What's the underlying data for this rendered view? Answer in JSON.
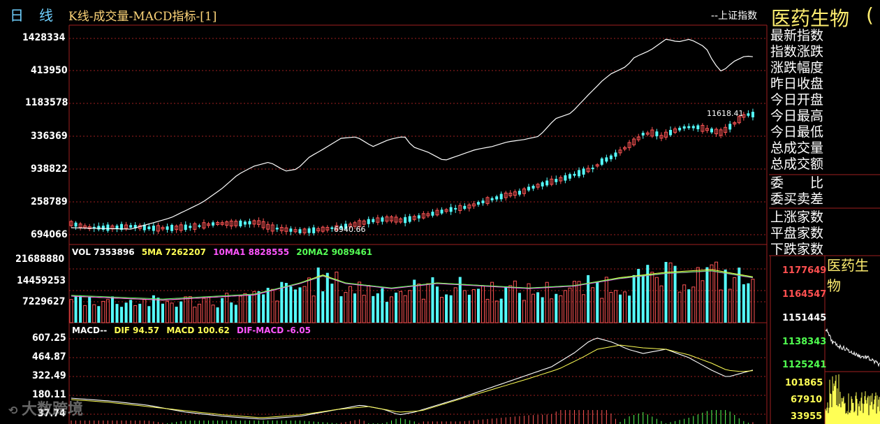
{
  "header": {
    "period_label": "日线",
    "chart_title": "K线-成交量-MACD指标-[1]",
    "index_legend": "--上证指数",
    "stock_name": "医药生物",
    "stock_code_fragment": "("
  },
  "price_panel": {
    "y_labels": [
      "1428334",
      "413950",
      "1183578",
      "336369",
      "938822",
      "258789",
      "694066"
    ],
    "high_annotation": "11618.41",
    "low_annotation": "6940.66"
  },
  "volume_panel": {
    "legend": {
      "vol": "VOL 7353896",
      "ma5": "5MA 7262207",
      "ma10": "10MA1 8828555",
      "ma20": "20MA2 9089461"
    },
    "y_labels": [
      "21688880",
      "14459253",
      "7229627"
    ]
  },
  "macd_panel": {
    "legend": {
      "name": "MACD--",
      "dif": "DIF 94.57",
      "macd": "MACD 100.62",
      "diff": "DIF-MACD -6.05"
    },
    "y_labels": [
      "607.25",
      "464.87",
      "322.49",
      "180.11",
      "37.74"
    ]
  },
  "info_panel": {
    "items": [
      "最新指数",
      "指数涨跌",
      "涨跌幅度",
      "昨日收盘",
      "今日开盘",
      "今日最高",
      "今日最低",
      "总成交量",
      "总成交额",
      "委　　比",
      "委买卖差",
      "上涨家数",
      "平盘家数",
      "下跌家数"
    ]
  },
  "mini_chart": {
    "name": "医药生物",
    "price_labels": [
      "1177649",
      "1164547",
      "1151445",
      "1138343",
      "1125241"
    ],
    "price_label_colors": [
      "#ff5050",
      "#ff5050",
      "#ffffff",
      "#50ff50",
      "#50ff50"
    ],
    "volume_labels": [
      "101865",
      "67910",
      "33955"
    ]
  },
  "watermark": {
    "text": "大数跨境"
  },
  "colors": {
    "up": "#ff5555",
    "down": "#55ffff",
    "index_line": "#ffffff",
    "ma5": "#ffff55",
    "ma10": "#ff55ff",
    "ma20": "#55ff55",
    "grid": "#a02020"
  },
  "chart_data": {
    "type": "line",
    "title": "K线-成交量-MACD指标-[1]",
    "series": [
      {
        "name": "上证指数",
        "type": "line"
      },
      {
        "name": "医药生物",
        "type": "candlestick",
        "low": 6940.66,
        "high": 11618.41
      },
      {
        "name": "VOL",
        "type": "bar",
        "last": 7353896
      },
      {
        "name": "MACD",
        "type": "line",
        "dif": 94.57,
        "macd": 100.62,
        "dif_minus_macd": -6.05
      }
    ]
  }
}
